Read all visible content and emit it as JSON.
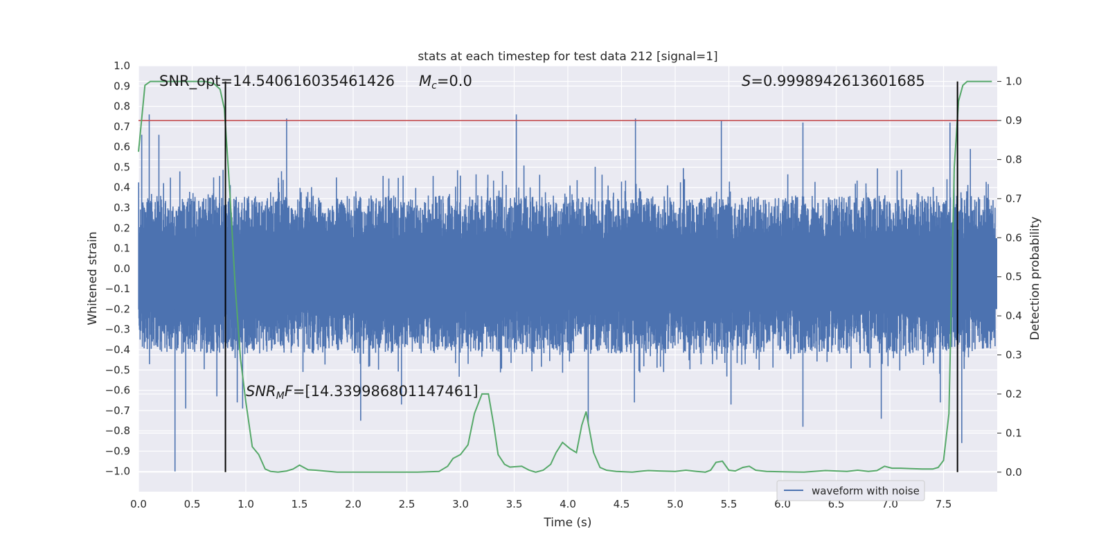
{
  "chart_data": {
    "type": "line",
    "title": "stats at each timestep for test data 212 [signal=1]",
    "xlabel": "Time (s)",
    "ylabel": "Whitened strain",
    "y2label": "Detection probability",
    "xlim": [
      0.0,
      8.0
    ],
    "ylim": [
      -1.1,
      1.0
    ],
    "y2lim": [
      -0.05,
      1.04
    ],
    "x_ticks": [
      "0.0",
      "0.5",
      "1.0",
      "1.5",
      "2.0",
      "2.5",
      "3.0",
      "3.5",
      "4.0",
      "4.5",
      "5.0",
      "5.5",
      "6.0",
      "6.5",
      "7.0",
      "7.5"
    ],
    "y_ticks": [
      "1.0",
      "0.9",
      "0.8",
      "0.7",
      "0.6",
      "0.5",
      "0.4",
      "0.3",
      "0.2",
      "0.1",
      "0.0",
      "−0.1",
      "−0.2",
      "−0.3",
      "−0.4",
      "−0.5",
      "−0.6",
      "−0.7",
      "−0.8",
      "−0.9",
      "−1.0"
    ],
    "y2_ticks": [
      "1.0",
      "0.9",
      "0.8",
      "0.7",
      "0.6",
      "0.5",
      "0.4",
      "0.3",
      "0.2",
      "0.1",
      "0.0"
    ],
    "threshold_y": 0.73,
    "vlines_x": [
      0.81,
      7.63
    ],
    "annotations": {
      "snr_opt": "SNR_opt=14.540616035461426",
      "mc_symbol": "M",
      "mc_sub": "c",
      "mc_value": "=0.0",
      "s_symbol": "S",
      "s_value": "=0.9998942613601685",
      "snr_mf_symbol": "SNR",
      "snr_mf_sub": "M",
      "snr_mf_mid": "F",
      "snr_mf_value": "=[14.339986801147461]"
    },
    "legend": {
      "label": "waveform with noise",
      "placement": "lower-right"
    },
    "series": [
      {
        "name": "waveform with noise",
        "axis": "left",
        "color": "#4c72b0",
        "style": "dense noise, envelope approx ±0.35 to ±0.5",
        "peaks": [
          {
            "x": 0.03,
            "y": 0.66
          },
          {
            "x": 0.1,
            "y": 0.76
          },
          {
            "x": 0.19,
            "y": 0.66
          },
          {
            "x": 0.34,
            "y": -1.0
          },
          {
            "x": 0.44,
            "y": -0.69
          },
          {
            "x": 0.73,
            "y": -0.63
          },
          {
            "x": 0.92,
            "y": -0.66
          },
          {
            "x": 0.97,
            "y": -0.69
          },
          {
            "x": 1.38,
            "y": 0.74
          },
          {
            "x": 2.07,
            "y": -0.75
          },
          {
            "x": 2.45,
            "y": -0.67
          },
          {
            "x": 3.52,
            "y": 0.76
          },
          {
            "x": 4.19,
            "y": -0.76
          },
          {
            "x": 4.63,
            "y": 0.74
          },
          {
            "x": 4.62,
            "y": -0.66
          },
          {
            "x": 5.43,
            "y": 0.73
          },
          {
            "x": 5.52,
            "y": -0.67
          },
          {
            "x": 6.19,
            "y": 0.72
          },
          {
            "x": 6.19,
            "y": -0.78
          },
          {
            "x": 6.92,
            "y": -0.74
          },
          {
            "x": 7.47,
            "y": -0.66
          },
          {
            "x": 7.56,
            "y": 0.72
          },
          {
            "x": 7.67,
            "y": -0.86
          },
          {
            "x": 7.75,
            "y": 0.59
          }
        ]
      },
      {
        "name": "detection probability",
        "axis": "right",
        "color": "#55a868",
        "x": [
          0.0,
          0.06,
          0.11,
          0.2,
          0.3,
          0.5,
          0.62,
          0.7,
          0.76,
          0.8,
          0.85,
          0.9,
          0.95,
          1.0,
          1.06,
          1.12,
          1.18,
          1.23,
          1.3,
          1.38,
          1.44,
          1.5,
          1.58,
          1.65,
          1.73,
          1.85,
          2.0,
          2.3,
          2.6,
          2.8,
          2.88,
          2.93,
          3.0,
          3.07,
          3.13,
          3.2,
          3.26,
          3.31,
          3.35,
          3.41,
          3.46,
          3.57,
          3.64,
          3.7,
          3.77,
          3.84,
          3.89,
          3.95,
          4.02,
          4.08,
          4.13,
          4.17,
          4.24,
          4.3,
          4.36,
          4.45,
          4.6,
          4.7,
          4.75,
          4.85,
          5.0,
          5.1,
          5.2,
          5.28,
          5.33,
          5.38,
          5.44,
          5.5,
          5.56,
          5.63,
          5.69,
          5.75,
          5.85,
          6.0,
          6.2,
          6.4,
          6.6,
          6.7,
          6.8,
          6.88,
          6.95,
          7.02,
          7.1,
          7.2,
          7.3,
          7.4,
          7.45,
          7.5,
          7.55,
          7.6,
          7.64,
          7.68,
          7.72,
          7.78,
          7.85,
          7.9,
          7.95
        ],
        "y": [
          0.82,
          0.99,
          1.0,
          1.0,
          1.0,
          1.0,
          1.0,
          0.995,
          0.98,
          0.93,
          0.72,
          0.48,
          0.29,
          0.18,
          0.065,
          0.045,
          0.008,
          0.002,
          0.0,
          0.003,
          0.008,
          0.018,
          0.006,
          0.005,
          0.003,
          0.0,
          0.0,
          0.0,
          0.0,
          0.002,
          0.015,
          0.035,
          0.045,
          0.07,
          0.15,
          0.2,
          0.2,
          0.12,
          0.045,
          0.02,
          0.013,
          0.015,
          0.005,
          0.0,
          0.005,
          0.02,
          0.05,
          0.076,
          0.06,
          0.05,
          0.12,
          0.155,
          0.05,
          0.012,
          0.005,
          0.002,
          0.0,
          0.003,
          0.004,
          0.003,
          0.002,
          0.005,
          0.002,
          0.0,
          0.005,
          0.025,
          0.028,
          0.005,
          0.003,
          0.012,
          0.015,
          0.005,
          0.002,
          0.001,
          0.0,
          0.004,
          0.002,
          0.005,
          0.002,
          0.004,
          0.015,
          0.01,
          0.01,
          0.009,
          0.008,
          0.008,
          0.012,
          0.03,
          0.15,
          0.78,
          0.95,
          0.99,
          1.0,
          1.0,
          1.0,
          1.0,
          1.0
        ]
      }
    ]
  }
}
